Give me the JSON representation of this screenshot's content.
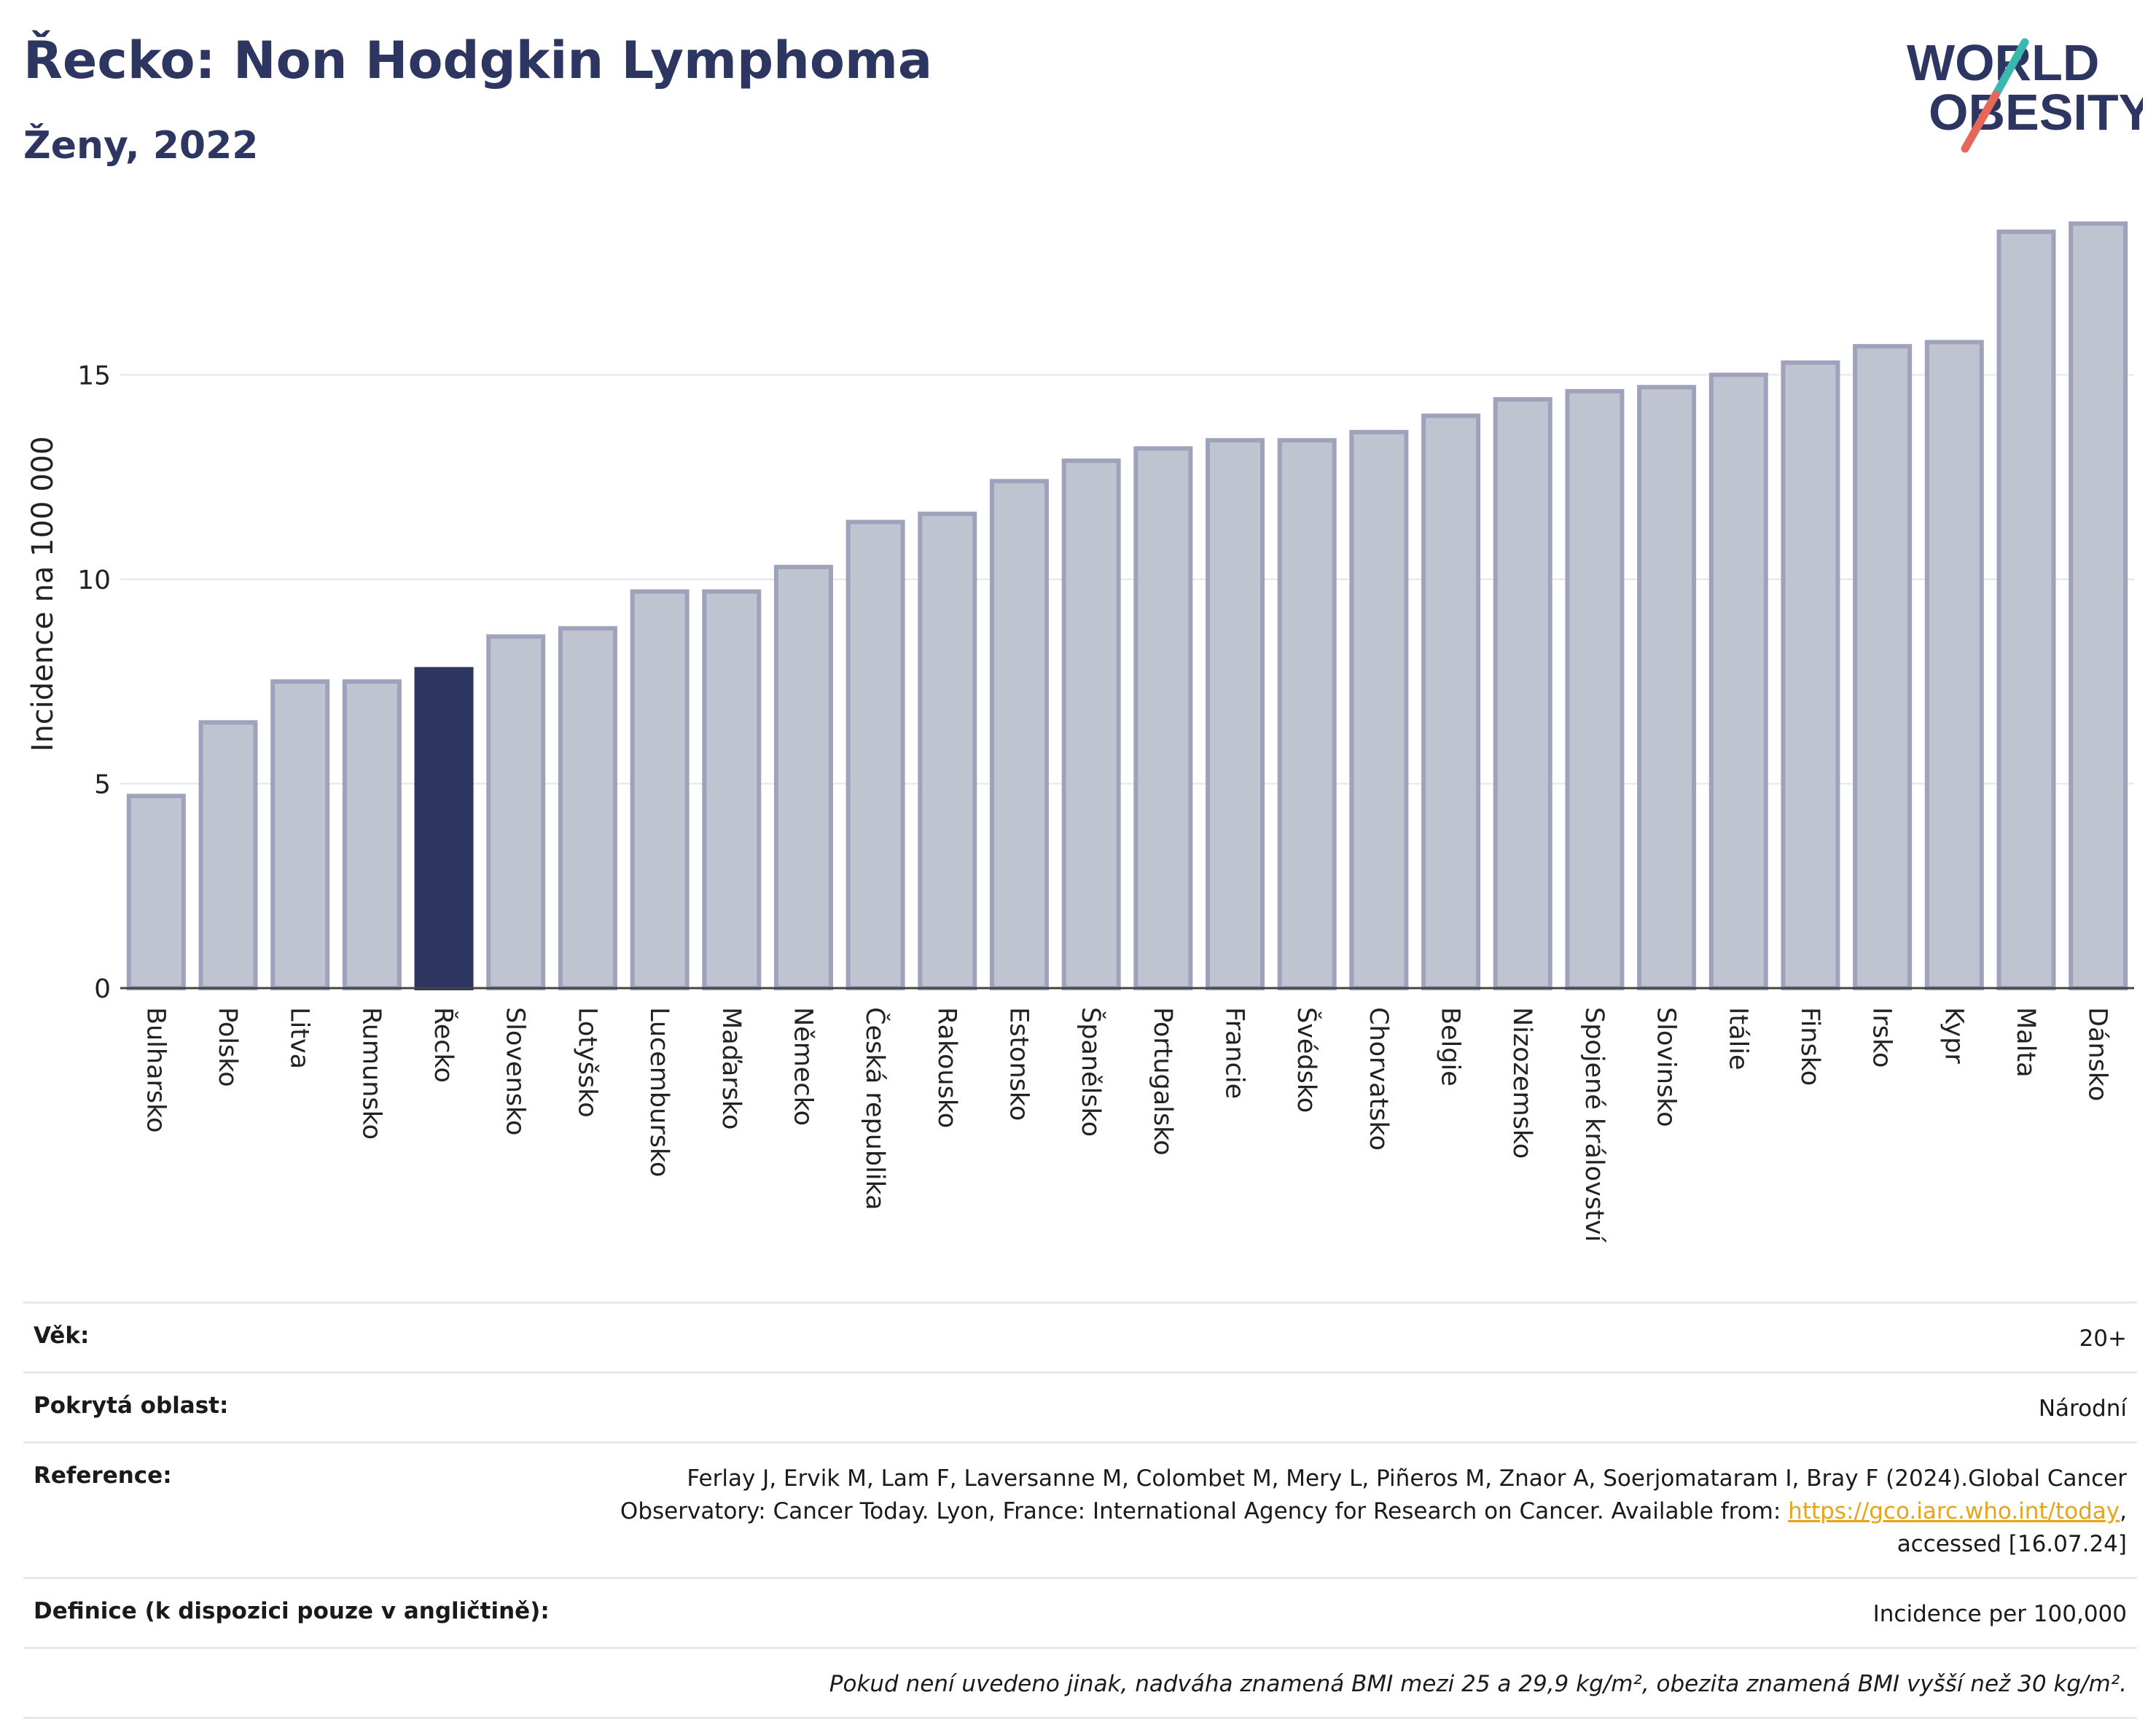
{
  "header": {
    "title": "Řecko: Non Hodgkin Lymphoma",
    "subtitle": "Ženy, 2022"
  },
  "logo": {
    "line1": "WORLD",
    "line2": "OBESITY"
  },
  "colors": {
    "highlight": "#2d3561",
    "bar_fill": "#c0c3d0",
    "bar_stroke": "#9ea3bb",
    "title": "#2d3561",
    "logo_slash_top": "#3ab8b0",
    "logo_slash_bottom": "#e5685a",
    "link": "#e8a317"
  },
  "chart_data": {
    "type": "bar",
    "title": "Řecko: Non Hodgkin Lymphoma",
    "subtitle": "Ženy, 2022",
    "xlabel": "",
    "ylabel": "Incidence na 100 000",
    "ylim": [
      0,
      19
    ],
    "yticks": [
      0,
      5,
      10,
      15
    ],
    "grid": true,
    "highlight": "Řecko",
    "categories": [
      "Bulharsko",
      "Polsko",
      "Litva",
      "Rumunsko",
      "Řecko",
      "Slovensko",
      "Lotyšsko",
      "Lucembursko",
      "Maďarsko",
      "Německo",
      "Česká republika",
      "Rakousko",
      "Estonsko",
      "Španělsko",
      "Portugalsko",
      "Francie",
      "Švédsko",
      "Chorvatsko",
      "Belgie",
      "Nizozemsko",
      "Spojené království",
      "Slovinsko",
      "Itálie",
      "Finsko",
      "Irsko",
      "Kypr",
      "Malta",
      "Dánsko"
    ],
    "values": [
      4.7,
      6.5,
      7.5,
      7.5,
      7.8,
      8.6,
      8.8,
      9.7,
      9.7,
      10.3,
      11.4,
      11.6,
      12.4,
      12.9,
      13.2,
      13.4,
      13.4,
      13.6,
      14.0,
      14.4,
      14.6,
      14.7,
      15.0,
      15.3,
      15.7,
      15.8,
      18.5,
      18.7
    ]
  },
  "info": {
    "age_label": "Věk:",
    "age_value": "20+",
    "area_label": "Pokrytá oblast:",
    "area_value": "Národní",
    "reference_label": "Reference:",
    "reference_text": "Ferlay J, Ervik M, Lam F, Laversanne M, Colombet M, Mery L, Piñeros M, Znaor A, Soerjomataram I, Bray F (2024).Global Cancer Observatory: Cancer Today. Lyon, France: International Agency for Research on Cancer. Available from:",
    "reference_link": "https://gco.iarc.who.int/today",
    "reference_suffix": ", accessed [16.07.24]",
    "definition_label": "Definice (k dispozici pouze v angličtině):",
    "definition_value": "Incidence per 100,000",
    "note": "Pokud není uvedeno jinak, nadváha znamená BMI mezi 25 a 29,9 kg/m², obezita znamená BMI vyšší než 30 kg/m²."
  }
}
